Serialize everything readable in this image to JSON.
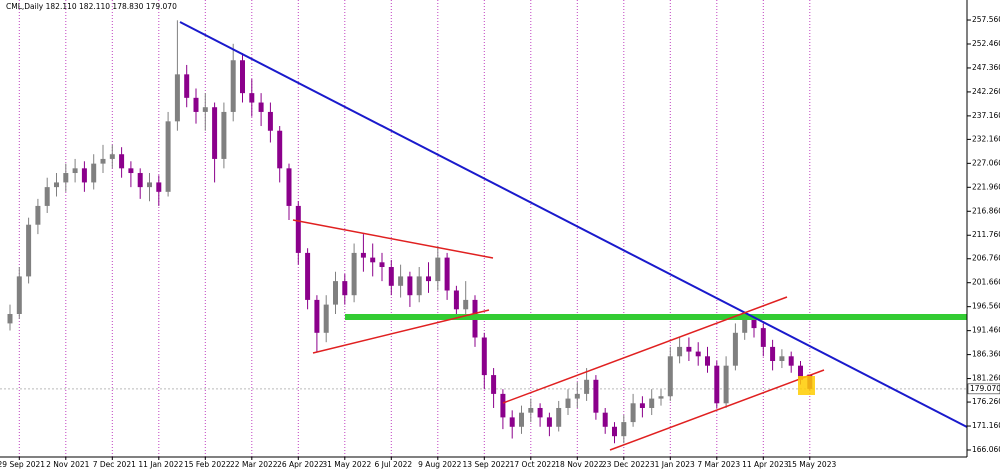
{
  "chart_data": {
    "type": "candlestick",
    "title": "CML,Daily  182.110 182.110 178.830 179.070",
    "last_price_label": "179.070",
    "up_color": "#808080",
    "down_color": "#8b008b",
    "x_grid": true,
    "grid_color": "#c040c0",
    "categories": [
      null,
      "29 Sep 2021",
      null,
      null,
      null,
      null,
      "2 Nov 2021",
      null,
      null,
      null,
      null,
      "7 Dec 2021",
      null,
      null,
      null,
      null,
      "11 Jan 2022",
      null,
      null,
      null,
      null,
      "15 Feb 2022",
      null,
      null,
      null,
      null,
      "22 Mar 2022",
      null,
      null,
      null,
      null,
      "26 Apr 2022",
      null,
      null,
      null,
      null,
      "31 May 2022",
      null,
      null,
      null,
      null,
      "6 Jul 2022",
      null,
      null,
      null,
      null,
      "9 Aug 2022",
      null,
      null,
      null,
      null,
      "13 Sep 2022",
      null,
      null,
      null,
      null,
      "17 Oct 2022",
      null,
      null,
      null,
      null,
      "18 Nov 2022",
      null,
      null,
      null,
      null,
      "23 Dec 2022",
      null,
      null,
      null,
      null,
      "31 Jan 2023",
      null,
      null,
      null,
      null,
      "7 Mar 2023",
      null,
      null,
      null,
      null,
      "11 Apr 2023",
      null,
      null,
      null,
      null,
      "15 May 2023"
    ],
    "open": [
      193,
      195,
      203,
      214,
      218,
      222,
      223,
      225,
      226,
      223,
      227,
      228,
      229,
      226,
      225,
      222,
      223,
      221,
      236,
      246,
      241,
      238,
      239,
      228,
      238,
      249,
      242,
      240,
      238,
      234,
      226,
      218,
      208,
      198,
      191,
      197,
      202,
      199,
      208,
      207,
      206,
      205,
      201,
      203,
      199,
      203,
      202,
      207,
      200,
      196,
      198,
      190,
      182,
      178,
      173,
      171,
      174,
      175,
      173,
      171,
      175,
      177,
      178,
      181,
      174,
      171,
      169,
      172,
      176,
      175,
      177,
      177.5,
      186,
      188,
      187,
      186,
      184,
      176,
      184,
      191,
      194,
      192,
      188,
      185,
      186,
      184,
      182.11
    ],
    "high": [
      197,
      205,
      215.5,
      219.5,
      224,
      225,
      227,
      228,
      227.5,
      229,
      231,
      231,
      230.5,
      227.5,
      226,
      225,
      224.5,
      238,
      257.5,
      248,
      243,
      242,
      240,
      240,
      252.5,
      250.5,
      245,
      242,
      240,
      235,
      227,
      219,
      209,
      199,
      199,
      204,
      203.5,
      210,
      212,
      210,
      208,
      206.5,
      205.5,
      204,
      205,
      206,
      209.5,
      208,
      201,
      202,
      199,
      191,
      183.5,
      179,
      174.5,
      175.5,
      177,
      176,
      174,
      176.5,
      179,
      180.5,
      183.5,
      182,
      175,
      172,
      173.5,
      178,
      177.5,
      179,
      179,
      188,
      190,
      190,
      189,
      188,
      185,
      186,
      193,
      195.5,
      195,
      193,
      189.5,
      187.5,
      187,
      185,
      182.11
    ],
    "low": [
      191.5,
      194,
      201.5,
      212,
      216.5,
      220,
      221,
      223,
      221,
      221.5,
      225,
      226,
      224,
      222,
      219.5,
      219,
      218,
      220,
      234,
      239,
      235.5,
      234,
      223,
      226,
      236,
      240,
      237,
      235,
      231.5,
      223,
      215,
      205.5,
      196,
      187,
      189,
      195,
      197,
      197.5,
      204,
      203,
      202,
      199,
      198.5,
      196.5,
      197.5,
      199.5,
      200,
      198,
      194,
      194.5,
      188,
      179,
      175,
      170.5,
      168.5,
      169.5,
      172,
      171,
      169,
      170,
      173.5,
      175,
      176.5,
      172.5,
      169.5,
      167.5,
      167.5,
      171,
      173,
      173.5,
      175.5,
      176.5,
      184.5,
      185,
      184,
      182.5,
      175,
      175,
      183,
      189.5,
      190,
      186,
      183,
      183.5,
      182.5,
      180,
      178.83
    ],
    "close": [
      195,
      203,
      214,
      218,
      222,
      223,
      225,
      226,
      223,
      227,
      228,
      229,
      226,
      225,
      222,
      223,
      221,
      236,
      246,
      241,
      238,
      239,
      228,
      238,
      249,
      242,
      240,
      238,
      234,
      226,
      218,
      208,
      198,
      191,
      197,
      202,
      199,
      208,
      207,
      206,
      205,
      201,
      203,
      199,
      203,
      202,
      207,
      200,
      196,
      198,
      190,
      182,
      178,
      173,
      171,
      174,
      175,
      173,
      171,
      175,
      177,
      178,
      181,
      174,
      171,
      169,
      172,
      176,
      175,
      177,
      177.5,
      186,
      188,
      187,
      186,
      184,
      176,
      184,
      191,
      194,
      192,
      188,
      185,
      186,
      184,
      181,
      179.07
    ],
    "ylim": [
      164.57,
      261.82
    ],
    "yticks": [
      {
        "value": 257.56,
        "label": "257.560"
      },
      {
        "value": 252.46,
        "label": "252.460"
      },
      {
        "value": 247.36,
        "label": "247.360"
      },
      {
        "value": 242.26,
        "label": "242.260"
      },
      {
        "value": 237.16,
        "label": "237.160"
      },
      {
        "value": 232.16,
        "label": "232.160"
      },
      {
        "value": 227.06,
        "label": "227.060"
      },
      {
        "value": 221.96,
        "label": "221.960"
      },
      {
        "value": 216.86,
        "label": "216.860"
      },
      {
        "value": 211.76,
        "label": "211.760"
      },
      {
        "value": 206.76,
        "label": "206.760"
      },
      {
        "value": 201.66,
        "label": "201.660"
      },
      {
        "value": 196.56,
        "label": "196.560"
      },
      {
        "value": 191.46,
        "label": "191.460"
      },
      {
        "value": 186.36,
        "label": "186.360"
      },
      {
        "value": 181.26,
        "label": "181.260"
      },
      {
        "value": 176.26,
        "label": "176.260"
      },
      {
        "value": 171.16,
        "label": "171.160"
      },
      {
        "value": 166.06,
        "label": "166.060"
      }
    ]
  }
}
